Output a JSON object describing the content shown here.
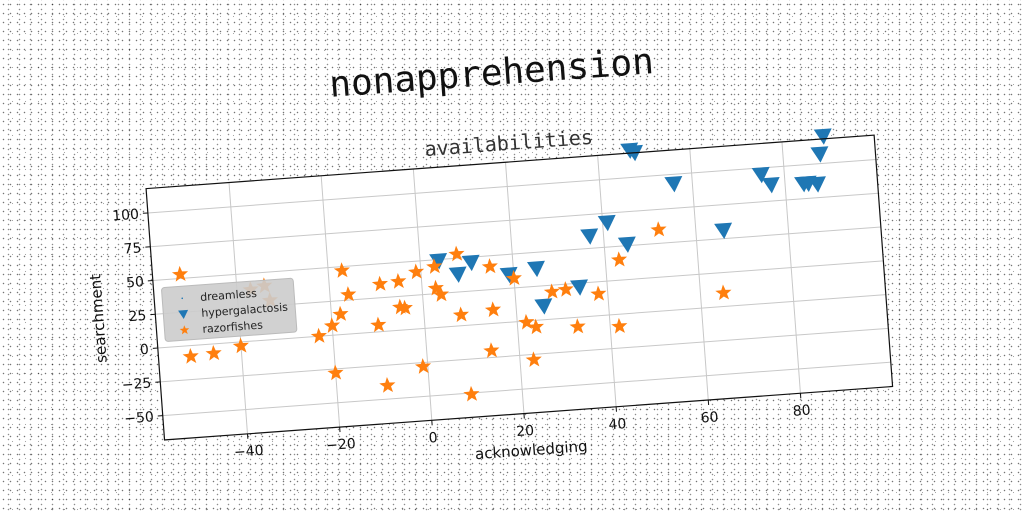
{
  "chart_data": {
    "type": "scatter",
    "suptitle": "nonapprehension",
    "title": "availabilities",
    "xlabel": "acknowledging",
    "ylabel": "searchment",
    "xlim": [
      -58,
      100
    ],
    "ylim": [
      -68,
      118
    ],
    "xticks": [
      -40,
      -20,
      0,
      20,
      40,
      60,
      80
    ],
    "yticks": [
      -50,
      -25,
      0,
      25,
      50,
      75,
      100
    ],
    "grid": true,
    "legend_position": "center-left",
    "series": [
      {
        "name": "dreamless",
        "marker": "point",
        "color": "#1f77b4",
        "points": []
      },
      {
        "name": "hypergalactosis",
        "marker": "triangle-down",
        "color": "#1f77b4",
        "points": [
          [
            47,
            120
          ],
          [
            48,
            118
          ],
          [
            89,
            120
          ],
          [
            88,
            107
          ],
          [
            56,
            93
          ],
          [
            75,
            95
          ],
          [
            77,
            87
          ],
          [
            84,
            86
          ],
          [
            85,
            86
          ],
          [
            87,
            85
          ],
          [
            41,
            68
          ],
          [
            37,
            59
          ],
          [
            45,
            51
          ],
          [
            66,
            56
          ],
          [
            4,
            49
          ],
          [
            11,
            46
          ],
          [
            8,
            38
          ],
          [
            19,
            35
          ],
          [
            25,
            38
          ],
          [
            34,
            22
          ],
          [
            26,
            10
          ]
        ]
      },
      {
        "name": "razorfishes",
        "marker": "star",
        "color": "#ff7f0e",
        "points": [
          [
            -52,
            53
          ],
          [
            -37,
            38
          ],
          [
            -34,
            40
          ],
          [
            -33,
            29
          ],
          [
            -17,
            47
          ],
          [
            -16,
            29
          ],
          [
            -9,
            35
          ],
          [
            -5,
            36
          ],
          [
            -1,
            42
          ],
          [
            8,
            53
          ],
          [
            3,
            45
          ],
          [
            15,
            42
          ],
          [
            52,
            60
          ],
          [
            43,
            40
          ],
          [
            3,
            29
          ],
          [
            4,
            24
          ],
          [
            20,
            32
          ],
          [
            -18,
            15
          ],
          [
            -5,
            17
          ],
          [
            -4,
            16
          ],
          [
            28,
            20
          ],
          [
            31,
            21
          ],
          [
            38,
            16
          ],
          [
            -20,
            7
          ],
          [
            -23,
            0
          ],
          [
            -10,
            5
          ],
          [
            8,
            8
          ],
          [
            15,
            10
          ],
          [
            22,
            -1
          ],
          [
            24,
            -5
          ],
          [
            33,
            -7
          ],
          [
            42,
            -9
          ],
          [
            65,
            10
          ],
          [
            -40,
            -3
          ],
          [
            -46,
            -7
          ],
          [
            -51,
            -8
          ],
          [
            14,
            -20
          ],
          [
            -1,
            -28
          ],
          [
            -20,
            -28
          ],
          [
            -9,
            -40
          ],
          [
            23,
            -29
          ],
          [
            9,
            -51
          ]
        ]
      }
    ]
  }
}
